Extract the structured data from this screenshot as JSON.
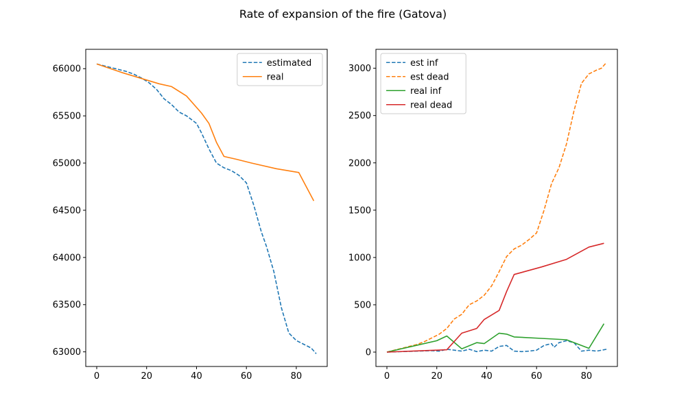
{
  "figure": {
    "suptitle": "Rate of expansion of the fire (Gatova)"
  },
  "chart_data": [
    {
      "type": "line",
      "title": "",
      "xlabel": "",
      "ylabel": "",
      "xlim": [
        -4.4,
        92.4
      ],
      "ylim": [
        62845,
        66205
      ],
      "xticks": [
        0,
        20,
        40,
        60,
        80
      ],
      "yticks": [
        63000,
        63500,
        64000,
        64500,
        65000,
        65500,
        66000
      ],
      "grid": false,
      "legend_position": "top-right",
      "series": [
        {
          "name": "estimated",
          "color": "#1f77b4",
          "dashed": true,
          "x": [
            0,
            3,
            6,
            9,
            12,
            15,
            18,
            21,
            24,
            27,
            30,
            33,
            36,
            39,
            40,
            42,
            45,
            48,
            51,
            54,
            57,
            60,
            63,
            66,
            68,
            71,
            74,
            77,
            80,
            83,
            86,
            88
          ],
          "y": [
            66050,
            66030,
            66010,
            65990,
            65970,
            65940,
            65900,
            65850,
            65780,
            65680,
            65620,
            65540,
            65500,
            65440,
            65420,
            65320,
            65150,
            65000,
            64950,
            64920,
            64870,
            64790,
            64550,
            64270,
            64120,
            63850,
            63470,
            63200,
            63120,
            63080,
            63040,
            62980
          ]
        },
        {
          "name": "real",
          "color": "#ff7f0e",
          "dashed": false,
          "x": [
            0,
            10,
            20,
            25,
            30,
            36,
            42,
            45,
            48,
            51,
            56,
            62,
            72,
            81,
            87
          ],
          "y": [
            66050,
            65960,
            65880,
            65840,
            65810,
            65710,
            65530,
            65420,
            65220,
            65070,
            65040,
            65000,
            64940,
            64900,
            64600
          ]
        }
      ]
    },
    {
      "type": "line",
      "title": "",
      "xlabel": "",
      "ylabel": "",
      "xlim": [
        -4.4,
        92.4
      ],
      "ylim": [
        -152,
        3200
      ],
      "xticks": [
        0,
        20,
        40,
        60,
        80
      ],
      "yticks": [
        0,
        500,
        1000,
        1500,
        2000,
        2500,
        3000
      ],
      "grid": false,
      "legend_position": "top-left",
      "series": [
        {
          "name": "est inf",
          "color": "#1f77b4",
          "dashed": true,
          "x": [
            0,
            6,
            12,
            18,
            21,
            24,
            27,
            30,
            33,
            36,
            39,
            42,
            45,
            48,
            51,
            54,
            57,
            60,
            63,
            66,
            67,
            69,
            72,
            75,
            78,
            81,
            84,
            88
          ],
          "y": [
            0,
            5,
            10,
            15,
            10,
            30,
            20,
            10,
            30,
            5,
            20,
            10,
            60,
            70,
            10,
            5,
            10,
            20,
            70,
            90,
            50,
            100,
            120,
            100,
            10,
            20,
            10,
            30
          ]
        },
        {
          "name": "est dead",
          "color": "#ff7f0e",
          "dashed": true,
          "x": [
            0,
            3,
            6,
            9,
            12,
            15,
            18,
            21,
            24,
            27,
            30,
            33,
            36,
            39,
            42,
            45,
            48,
            51,
            54,
            57,
            60,
            63,
            66,
            69,
            72,
            75,
            78,
            81,
            84,
            86,
            88
          ],
          "y": [
            0,
            20,
            40,
            60,
            80,
            110,
            150,
            190,
            250,
            350,
            400,
            500,
            540,
            600,
            700,
            850,
            1010,
            1090,
            1130,
            1190,
            1260,
            1500,
            1780,
            1950,
            2200,
            2550,
            2840,
            2940,
            2980,
            3000,
            3060
          ]
        },
        {
          "name": "real inf",
          "color": "#2ca02c",
          "dashed": false,
          "x": [
            0,
            10,
            20,
            24,
            30,
            36,
            39,
            45,
            48,
            51,
            62,
            72,
            81,
            87
          ],
          "y": [
            0,
            60,
            120,
            170,
            35,
            100,
            90,
            200,
            190,
            160,
            145,
            130,
            40,
            300
          ]
        },
        {
          "name": "real dead",
          "color": "#d62728",
          "dashed": false,
          "x": [
            0,
            10,
            20,
            24,
            30,
            36,
            39,
            45,
            48,
            51,
            62,
            72,
            81,
            87
          ],
          "y": [
            0,
            10,
            20,
            25,
            200,
            250,
            345,
            440,
            640,
            820,
            900,
            980,
            1110,
            1150
          ]
        }
      ]
    }
  ]
}
